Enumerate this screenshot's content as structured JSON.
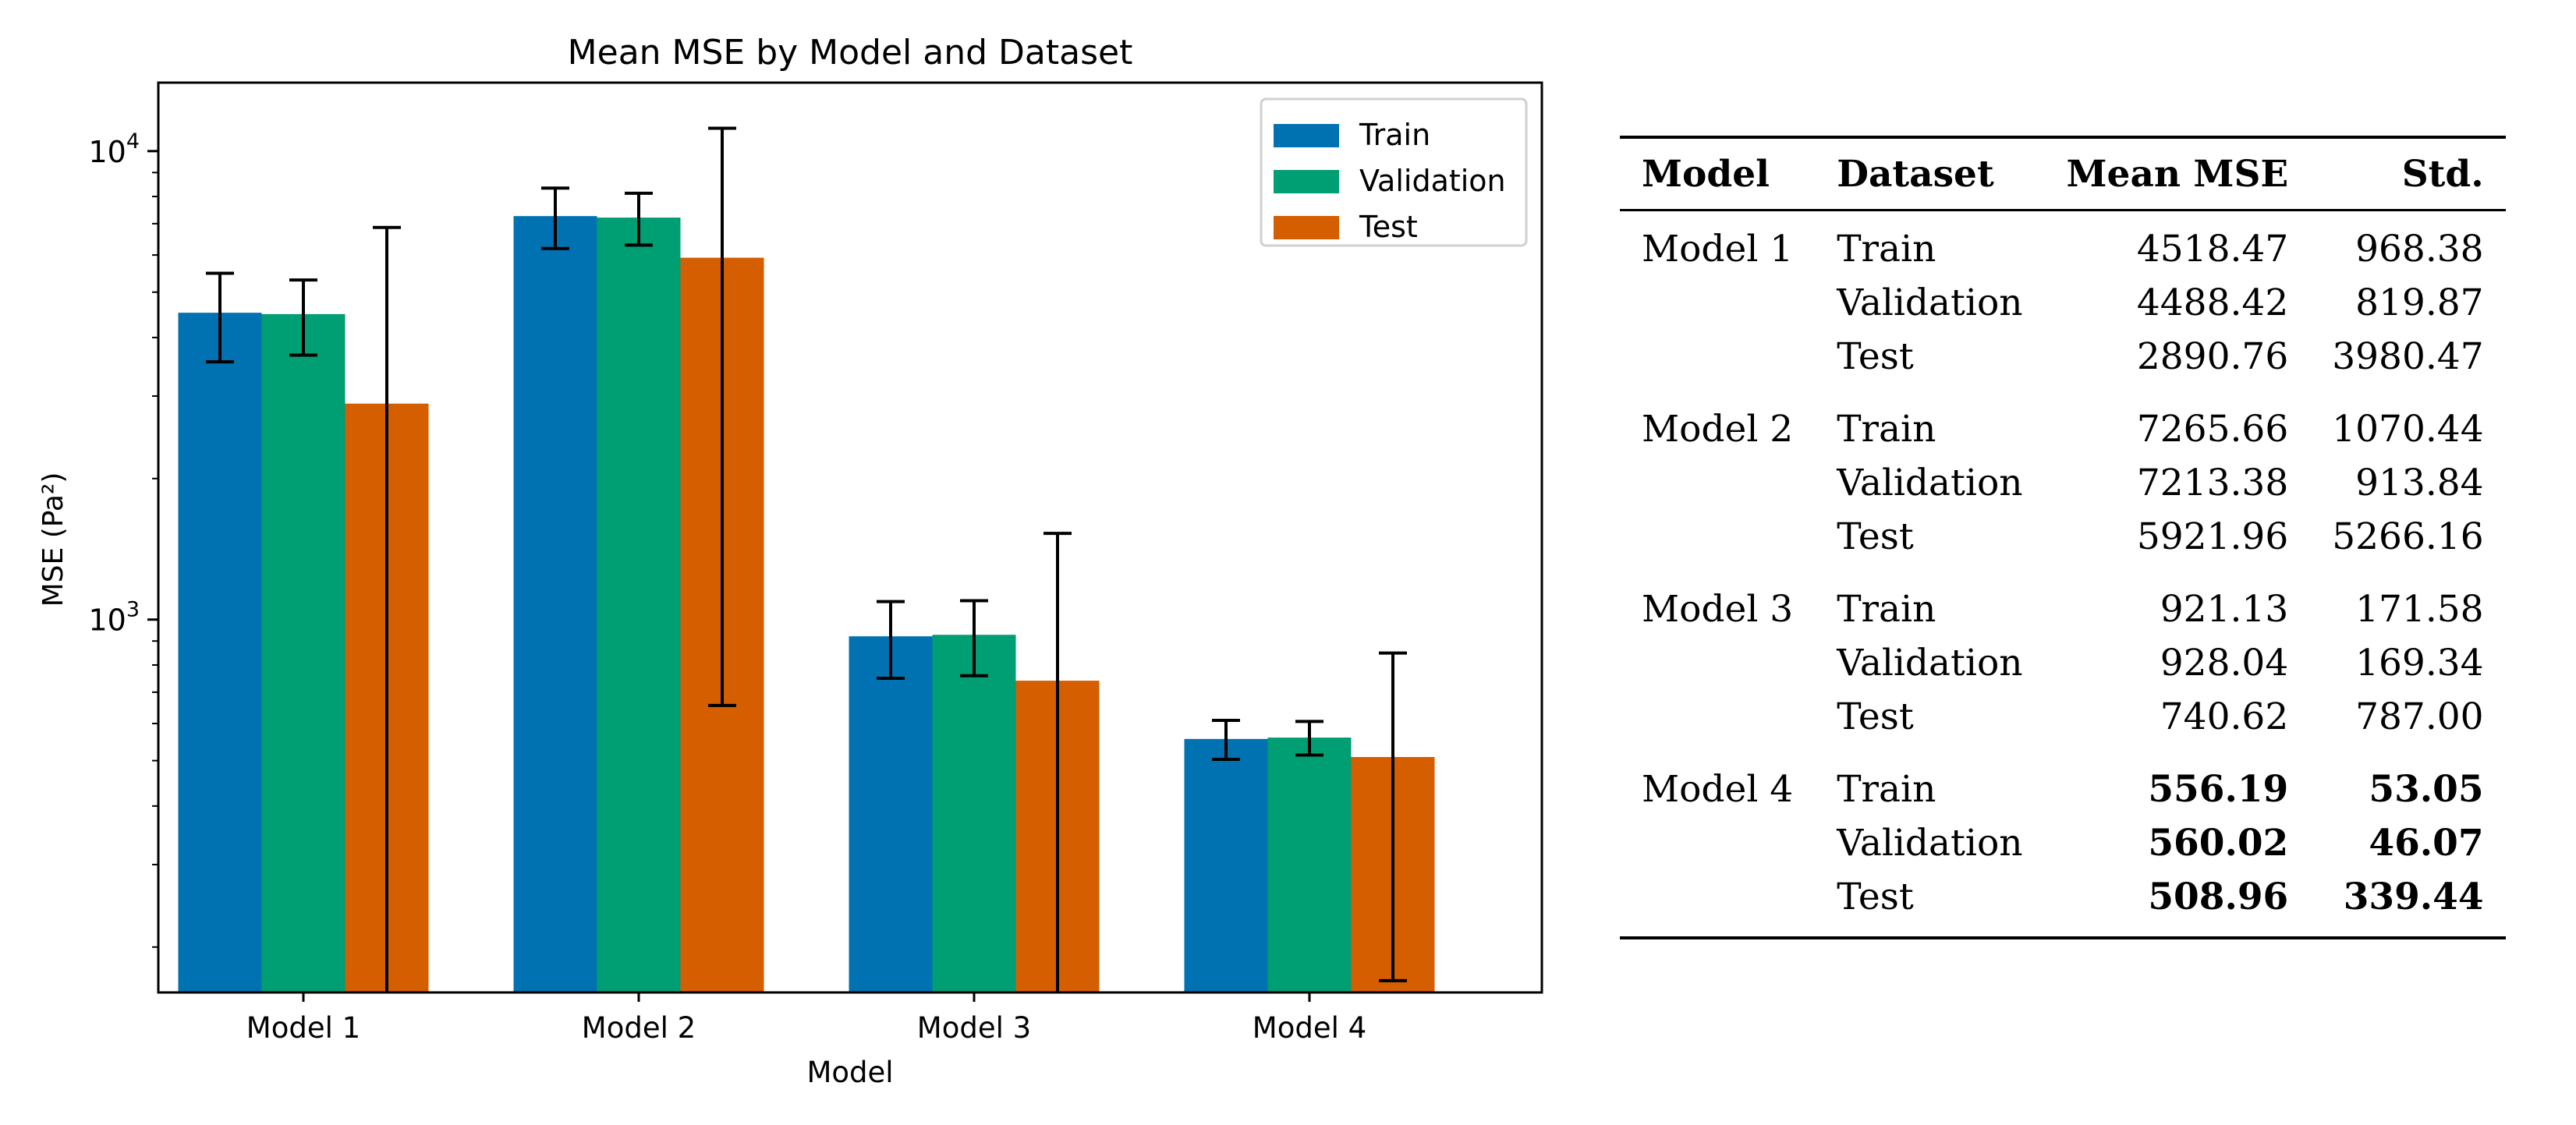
{
  "chart_data": {
    "type": "bar",
    "title": "Mean MSE by Model and Dataset",
    "xlabel": "Model",
    "ylabel": "MSE (Pa²)",
    "yscale": "log",
    "ylim": [
      160,
      14000
    ],
    "y_ticks": [
      {
        "value": 1000,
        "base": "10",
        "exp": "3"
      },
      {
        "value": 10000,
        "base": "10",
        "exp": "4"
      }
    ],
    "categories": [
      "Model 1",
      "Model 2",
      "Model 3",
      "Model 4"
    ],
    "series": [
      {
        "name": "Train",
        "color": "#0072b2",
        "values": [
          4518.47,
          7265.66,
          921.13,
          556.19
        ],
        "err": [
          968.38,
          1070.44,
          171.58,
          53.05
        ]
      },
      {
        "name": "Validation",
        "color": "#009e73",
        "values": [
          4488.42,
          7213.38,
          928.04,
          560.02
        ],
        "err": [
          819.87,
          913.84,
          169.34,
          46.07
        ]
      },
      {
        "name": "Test",
        "color": "#d55e00",
        "values": [
          2890.76,
          5921.96,
          740.62,
          508.96
        ],
        "err": [
          3980.47,
          5266.16,
          787.0,
          339.44
        ]
      }
    ],
    "legend": "top-right"
  },
  "table": {
    "headers": [
      "Model",
      "Dataset",
      "Mean MSE",
      "Std."
    ],
    "groups": [
      {
        "model": "Model 1",
        "rows": [
          {
            "dataset": "Train",
            "mean": "4518.47",
            "std": "968.38"
          },
          {
            "dataset": "Validation",
            "mean": "4488.42",
            "std": "819.87"
          },
          {
            "dataset": "Test",
            "mean": "2890.76",
            "std": "3980.47"
          }
        ]
      },
      {
        "model": "Model 2",
        "rows": [
          {
            "dataset": "Train",
            "mean": "7265.66",
            "std": "1070.44"
          },
          {
            "dataset": "Validation",
            "mean": "7213.38",
            "std": "913.84"
          },
          {
            "dataset": "Test",
            "mean": "5921.96",
            "std": "5266.16"
          }
        ]
      },
      {
        "model": "Model 3",
        "rows": [
          {
            "dataset": "Train",
            "mean": "921.13",
            "std": "171.58"
          },
          {
            "dataset": "Validation",
            "mean": "928.04",
            "std": "169.34"
          },
          {
            "dataset": "Test",
            "mean": "740.62",
            "std": "787.00"
          }
        ]
      },
      {
        "model": "Model 4",
        "bold": true,
        "rows": [
          {
            "dataset": "Train",
            "mean": "556.19",
            "std": "53.05"
          },
          {
            "dataset": "Validation",
            "mean": "560.02",
            "std": "46.07"
          },
          {
            "dataset": "Test",
            "mean": "508.96",
            "std": "339.44"
          }
        ]
      }
    ]
  }
}
